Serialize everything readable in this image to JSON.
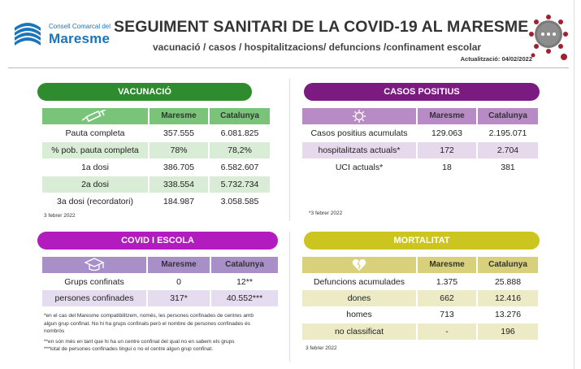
{
  "header": {
    "logo_small": "Consell Comarcal del",
    "logo_big": "Maresme",
    "title": "SEGUIMENT SANITARI DE LA COVID-19 AL MARESME",
    "subtitle": "vacunació / casos / hospitalitzacions/ defuncions /confinament escolar",
    "updated": "Actualització: 04/02/2022"
  },
  "colors": {
    "vacunacio": "#2e8b2e",
    "vacunacio_light": "#7ac47a",
    "vacunacio_row": "#d9ecd6",
    "casos": "#7b1a80",
    "casos_light": "#b88bc6",
    "casos_row": "#e6d9ec",
    "covid": "#b21bbd",
    "covid_light": "#a98fc8",
    "covid_row": "#e5dcef",
    "mortalitat": "#cdc51f",
    "mortalitat_light": "#d8d07a",
    "mortalitat_row": "#ecebc6"
  },
  "vacunacio": {
    "title": "VACUNACIÓ",
    "icon": "syringe-icon",
    "col1": "Maresme",
    "col2": "Catalunya",
    "rows": [
      {
        "label": "Pauta completa",
        "maresme": "357.555",
        "catalunya": "6.081.825"
      },
      {
        "label": "% pob. pauta completa",
        "maresme": "78%",
        "catalunya": "78,2%"
      },
      {
        "label": "1a dosi",
        "maresme": "386.705",
        "catalunya": "6.582.607"
      },
      {
        "label": "2a dosi",
        "maresme": "338.554",
        "catalunya": "5.732.734"
      },
      {
        "label": "3a dosi (recordatori)",
        "maresme": "184.987",
        "catalunya": "3.058.585"
      }
    ],
    "note": "3 febrer 2022"
  },
  "casos": {
    "title": "CASOS POSITIUS",
    "icon": "virus-icon",
    "col1": "Maresme",
    "col2": "Catalunya",
    "rows": [
      {
        "label": "Casos positius acumulats",
        "maresme": "129.063",
        "catalunya": "2.195.071"
      },
      {
        "label": "hospitalitzats actuals*",
        "maresme": "172",
        "catalunya": "2.704"
      },
      {
        "label": "UCI actuals*",
        "maresme": "18",
        "catalunya": "381"
      }
    ],
    "note": "*3 febrer 2022"
  },
  "covid": {
    "title": "COVID I ESCOLA",
    "icon": "graduation-cap-icon",
    "col1": "Maresme",
    "col2": "Catalunya",
    "rows": [
      {
        "label": "Grups confinats",
        "maresme": "0",
        "catalunya": "12**"
      },
      {
        "label": "persones confinades",
        "maresme": "317*",
        "catalunya": "40.552***"
      }
    ],
    "note1": "*en el cas del Maresme compatibilitzem, només, les persones  confinades de centres amb",
    "note2": "algun grup confinat. No hi ha grups confinats però el nombre de persones confinades és",
    "note3": "nombrós",
    "note4": "**en són més en tant que hi ha un centre confinat del qual no en sabem els grups",
    "note5": "***total de persones confinades tingui o no el centre algun grup confinat."
  },
  "mortalitat": {
    "title": "MORTALITAT",
    "icon": "broken-heart-icon",
    "col1": "Maresme",
    "col2": "Catalunya",
    "rows": [
      {
        "label": "Defuncions acumulades",
        "maresme": "1.375",
        "catalunya": "25.888"
      },
      {
        "label": "dones",
        "maresme": "662",
        "catalunya": "12.416"
      },
      {
        "label": "homes",
        "maresme": "713",
        "catalunya": "13.276"
      },
      {
        "label": "no classificat",
        "maresme": "-",
        "catalunya": "196"
      }
    ],
    "note": "3 febrer 2022"
  }
}
